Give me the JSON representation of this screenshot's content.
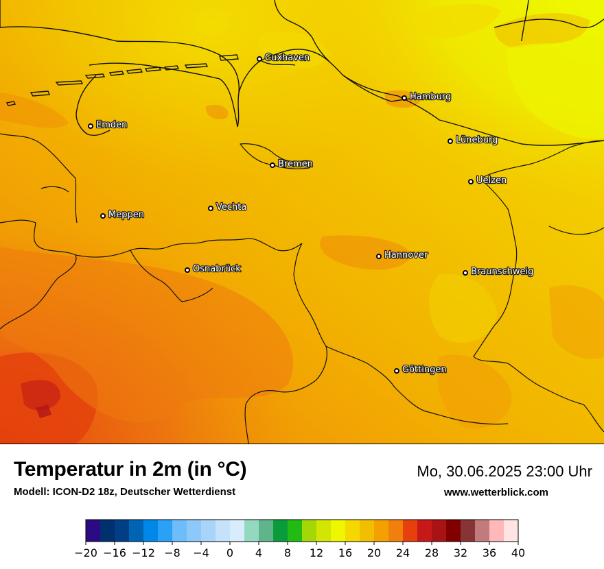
{
  "header": {
    "title": "Temperatur in 2m (in °C)",
    "model": "Modell: ICON-D2 18z, Deutscher Wetterdienst",
    "datetime": "Mo, 30.06.2025 23:00 Uhr",
    "website": "www.wetterblick.com"
  },
  "cities": [
    {
      "name": "Cuxhaven"
    },
    {
      "name": "Hamburg"
    },
    {
      "name": "Emden"
    },
    {
      "name": "Lüneburg"
    },
    {
      "name": "Bremen"
    },
    {
      "name": "Uelzen"
    },
    {
      "name": "Vechta"
    },
    {
      "name": "Meppen"
    },
    {
      "name": "Hannover"
    },
    {
      "name": "Osnabrück"
    },
    {
      "name": "Braunschweig"
    },
    {
      "name": "Göttingen"
    }
  ],
  "legend": {
    "unit": "°C",
    "min": -20,
    "max": 40,
    "step": 2,
    "tick_labels": [
      "−20",
      "−16",
      "−12",
      "−8",
      "−4",
      "0",
      "4",
      "8",
      "12",
      "16",
      "20",
      "24",
      "28",
      "32",
      "36",
      "40"
    ],
    "colors": [
      "#2c0a83",
      "#00306e",
      "#003f85",
      "#0064b4",
      "#0088e8",
      "#2aa1f5",
      "#6cbdfa",
      "#8cc8f8",
      "#a8d4fa",
      "#c6e2fb",
      "#d9ecfc",
      "#93d9c0",
      "#5fb48c",
      "#0a9c3a",
      "#21bb14",
      "#a4d705",
      "#d3e502",
      "#eef600",
      "#f4d800",
      "#f2be00",
      "#f3a000",
      "#f07f0c",
      "#e8400c",
      "#c71818",
      "#a91314",
      "#800000",
      "#873436",
      "#c17b7c",
      "#ffb8b8",
      "#ffe4e4"
    ]
  }
}
